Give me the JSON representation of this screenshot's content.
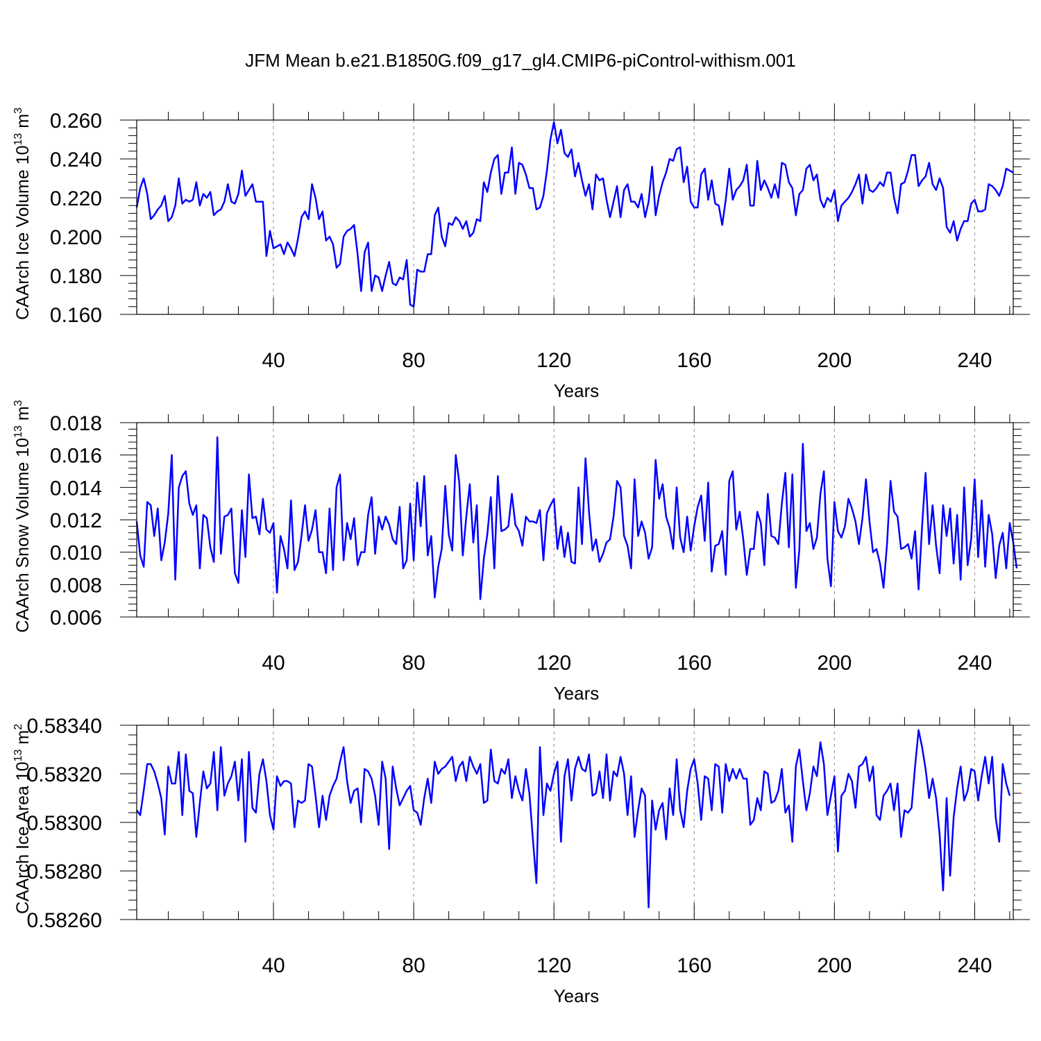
{
  "title": "JFM Mean b.e21.B1850G.f09_g17_gl4.CMIP6-piControl-withism.001",
  "colors": {
    "series": "#0000ff",
    "axis": "#000000",
    "grid": "#888888"
  },
  "chart_data": [
    {
      "type": "line",
      "title": "",
      "ylabel": {
        "text": "CAArch Ice Volume 10",
        "exponent": "13",
        "unit": " m",
        "unit_exponent": "3"
      },
      "xlabel": "Years",
      "xlim": [
        1,
        251
      ],
      "ylim": [
        0.16,
        0.26
      ],
      "xticks": [
        40,
        80,
        120,
        160,
        200,
        240
      ],
      "xtick_labels": [
        "40",
        "80",
        "120",
        "160",
        "200",
        "240"
      ],
      "yticks": [
        0.16,
        0.18,
        0.2,
        0.22,
        0.24,
        0.26
      ],
      "ytick_labels": [
        "0.160",
        "0.180",
        "0.200",
        "0.220",
        "0.240",
        "0.260"
      ],
      "grid": "vertical dashed at x ticks",
      "series": [
        {
          "values": [
            0.215,
            0.225,
            0.23,
            0.222,
            0.209,
            0.211,
            0.214,
            0.216,
            0.221,
            0.208,
            0.21,
            0.216,
            0.23,
            0.217,
            0.219,
            0.218,
            0.219,
            0.228,
            0.216,
            0.222,
            0.22,
            0.223,
            0.211,
            0.213,
            0.214,
            0.218,
            0.227,
            0.218,
            0.217,
            0.222,
            0.234,
            0.221,
            0.224,
            0.227,
            0.218,
            0.218,
            0.218,
            0.19,
            0.203,
            0.194,
            0.195,
            0.196,
            0.191,
            0.197,
            0.194,
            0.19,
            0.199,
            0.21,
            0.213,
            0.209,
            0.227,
            0.22,
            0.209,
            0.213,
            0.198,
            0.2,
            0.196,
            0.184,
            0.186,
            0.2,
            0.203,
            0.204,
            0.206,
            0.191,
            0.172,
            0.192,
            0.197,
            0.172,
            0.18,
            0.179,
            0.172,
            0.18,
            0.187,
            0.176,
            0.175,
            0.179,
            0.178,
            0.188,
            0.165,
            0.164,
            0.183,
            0.182,
            0.182,
            0.191,
            0.191,
            0.211,
            0.215,
            0.2,
            0.195,
            0.207,
            0.206,
            0.21,
            0.208,
            0.204,
            0.208,
            0.2,
            0.202,
            0.209,
            0.208,
            0.228,
            0.223,
            0.233,
            0.24,
            0.242,
            0.222,
            0.233,
            0.233,
            0.246,
            0.222,
            0.238,
            0.237,
            0.232,
            0.225,
            0.225,
            0.214,
            0.215,
            0.221,
            0.234,
            0.25,
            0.259,
            0.248,
            0.255,
            0.243,
            0.241,
            0.245,
            0.231,
            0.238,
            0.229,
            0.221,
            0.227,
            0.214,
            0.232,
            0.229,
            0.23,
            0.219,
            0.21,
            0.218,
            0.226,
            0.21,
            0.224,
            0.227,
            0.218,
            0.218,
            0.215,
            0.222,
            0.21,
            0.218,
            0.236,
            0.211,
            0.221,
            0.228,
            0.233,
            0.24,
            0.239,
            0.245,
            0.246,
            0.228,
            0.236,
            0.218,
            0.215,
            0.215,
            0.232,
            0.235,
            0.219,
            0.229,
            0.217,
            0.216,
            0.206,
            0.219,
            0.235,
            0.219,
            0.224,
            0.226,
            0.229,
            0.237,
            0.216,
            0.216,
            0.239,
            0.224,
            0.229,
            0.225,
            0.22,
            0.227,
            0.22,
            0.238,
            0.237,
            0.228,
            0.225,
            0.211,
            0.222,
            0.224,
            0.235,
            0.237,
            0.229,
            0.232,
            0.219,
            0.215,
            0.22,
            0.218,
            0.224,
            0.208,
            0.216,
            0.218,
            0.22,
            0.223,
            0.227,
            0.232,
            0.217,
            0.232,
            0.224,
            0.223,
            0.225,
            0.228,
            0.226,
            0.233,
            0.233,
            0.22,
            0.212,
            0.227,
            0.228,
            0.234,
            0.242,
            0.242,
            0.226,
            0.229,
            0.231,
            0.238,
            0.227,
            0.224,
            0.23,
            0.225,
            0.205,
            0.202,
            0.208,
            0.198,
            0.204,
            0.208,
            0.208,
            0.217,
            0.219,
            0.213,
            0.213,
            0.214,
            0.227,
            0.226,
            0.224,
            0.221,
            0.226,
            0.235,
            0.234,
            0.233
          ]
        }
      ]
    },
    {
      "type": "line",
      "title": "",
      "ylabel": {
        "text": "CAArch Snow Volume 10",
        "exponent": "13",
        "unit": " m",
        "unit_exponent": "3"
      },
      "xlabel": "Years",
      "xlim": [
        1,
        251
      ],
      "ylim": [
        0.006,
        0.018
      ],
      "xticks": [
        40,
        80,
        120,
        160,
        200,
        240
      ],
      "xtick_labels": [
        "40",
        "80",
        "120",
        "160",
        "200",
        "240"
      ],
      "yticks": [
        0.006,
        0.008,
        0.01,
        0.012,
        0.014,
        0.016,
        0.018
      ],
      "ytick_labels": [
        "0.006",
        "0.008",
        "0.010",
        "0.012",
        "0.014",
        "0.016",
        "0.018"
      ],
      "grid": "vertical dashed at x ticks",
      "series": [
        {
          "values": [
            0.0119,
            0.0098,
            0.0091,
            0.0131,
            0.0129,
            0.011,
            0.0127,
            0.0095,
            0.0106,
            0.0124,
            0.016,
            0.0083,
            0.014,
            0.0147,
            0.015,
            0.013,
            0.0123,
            0.0129,
            0.009,
            0.0123,
            0.0121,
            0.0103,
            0.0094,
            0.0171,
            0.0099,
            0.0122,
            0.0123,
            0.0127,
            0.0087,
            0.0081,
            0.0126,
            0.0097,
            0.0148,
            0.0121,
            0.0122,
            0.0111,
            0.0133,
            0.0114,
            0.0112,
            0.0118,
            0.0075,
            0.011,
            0.0102,
            0.009,
            0.0132,
            0.0089,
            0.0094,
            0.011,
            0.0129,
            0.0107,
            0.0114,
            0.0126,
            0.01,
            0.01,
            0.0087,
            0.0127,
            0.0089,
            0.014,
            0.0148,
            0.0095,
            0.0118,
            0.0108,
            0.0121,
            0.0092,
            0.01,
            0.01,
            0.0123,
            0.0134,
            0.0099,
            0.0122,
            0.0114,
            0.0122,
            0.0117,
            0.0108,
            0.0105,
            0.0128,
            0.009,
            0.0095,
            0.013,
            0.0095,
            0.0143,
            0.0116,
            0.0147,
            0.0098,
            0.011,
            0.0072,
            0.0091,
            0.0102,
            0.0141,
            0.0111,
            0.0101,
            0.016,
            0.0143,
            0.0098,
            0.0122,
            0.0142,
            0.0106,
            0.0129,
            0.0071,
            0.0096,
            0.0111,
            0.0134,
            0.009,
            0.0147,
            0.0113,
            0.0114,
            0.0116,
            0.0136,
            0.0117,
            0.0113,
            0.0104,
            0.0122,
            0.0119,
            0.0119,
            0.0118,
            0.0126,
            0.0095,
            0.0124,
            0.0129,
            0.0133,
            0.0102,
            0.0116,
            0.0097,
            0.0112,
            0.0094,
            0.0093,
            0.014,
            0.0105,
            0.0158,
            0.0125,
            0.0101,
            0.0108,
            0.0094,
            0.0099,
            0.0106,
            0.0108,
            0.0122,
            0.0144,
            0.014,
            0.011,
            0.0104,
            0.009,
            0.0145,
            0.011,
            0.0119,
            0.0112,
            0.0096,
            0.0103,
            0.0157,
            0.0133,
            0.0142,
            0.0122,
            0.0115,
            0.0102,
            0.014,
            0.0109,
            0.01,
            0.0122,
            0.0101,
            0.0116,
            0.0128,
            0.0135,
            0.0107,
            0.0143,
            0.0088,
            0.0104,
            0.0105,
            0.0113,
            0.0086,
            0.0144,
            0.015,
            0.0114,
            0.0125,
            0.0108,
            0.0086,
            0.0102,
            0.0102,
            0.0125,
            0.0118,
            0.0092,
            0.0136,
            0.011,
            0.0109,
            0.0105,
            0.013,
            0.0149,
            0.0103,
            0.0148,
            0.0078,
            0.0102,
            0.0167,
            0.0113,
            0.0118,
            0.0102,
            0.0109,
            0.0136,
            0.015,
            0.0096,
            0.0079,
            0.0131,
            0.0113,
            0.0109,
            0.0116,
            0.0133,
            0.0127,
            0.0119,
            0.0105,
            0.0121,
            0.0145,
            0.0119,
            0.01,
            0.0102,
            0.0093,
            0.0078,
            0.0105,
            0.0144,
            0.0125,
            0.0122,
            0.0102,
            0.0103,
            0.0105,
            0.0096,
            0.0113,
            0.0077,
            0.0116,
            0.0149,
            0.0105,
            0.0129,
            0.0104,
            0.0087,
            0.0129,
            0.011,
            0.0127,
            0.0093,
            0.0123,
            0.0083,
            0.014,
            0.0092,
            0.0108,
            0.0145,
            0.0097,
            0.0132,
            0.0091,
            0.0123,
            0.0111,
            0.0084,
            0.0104,
            0.0112,
            0.009,
            0.0118,
            0.0106,
            0.009
          ]
        }
      ]
    },
    {
      "type": "line",
      "title": "",
      "ylabel": {
        "text": "CAArch Ice Area 10",
        "exponent": "13",
        "unit": " m",
        "unit_exponent": "2"
      },
      "xlabel": "Years",
      "xlim": [
        1,
        251
      ],
      "ylim": [
        0.5826,
        0.5834
      ],
      "xticks": [
        40,
        80,
        120,
        160,
        200,
        240
      ],
      "xtick_labels": [
        "40",
        "80",
        "120",
        "160",
        "200",
        "240"
      ],
      "yticks": [
        0.5826,
        0.5828,
        0.583,
        0.5832,
        0.5834
      ],
      "ytick_labels": [
        "0.58260",
        "0.58280",
        "0.58300",
        "0.58320",
        "0.58340"
      ],
      "grid": "vertical dashed at x ticks",
      "series": [
        {
          "values": [
            0.58305,
            0.58303,
            0.58313,
            0.58324,
            0.58324,
            0.58321,
            0.58316,
            0.5831,
            0.58295,
            0.58323,
            0.58316,
            0.58316,
            0.58329,
            0.58303,
            0.58328,
            0.58313,
            0.58312,
            0.58294,
            0.58308,
            0.58321,
            0.58314,
            0.58316,
            0.58329,
            0.58305,
            0.58331,
            0.58311,
            0.58316,
            0.58319,
            0.58325,
            0.58309,
            0.58326,
            0.58292,
            0.58329,
            0.58306,
            0.58304,
            0.5832,
            0.58326,
            0.58317,
            0.58303,
            0.58297,
            0.58319,
            0.58315,
            0.58317,
            0.58317,
            0.58316,
            0.58298,
            0.58309,
            0.58308,
            0.58309,
            0.58324,
            0.58323,
            0.58311,
            0.58298,
            0.58311,
            0.58301,
            0.58311,
            0.58315,
            0.58318,
            0.58325,
            0.58331,
            0.58317,
            0.58308,
            0.58313,
            0.58314,
            0.583,
            0.58322,
            0.58321,
            0.58318,
            0.58311,
            0.58299,
            0.58325,
            0.58318,
            0.58289,
            0.58323,
            0.58314,
            0.58307,
            0.5831,
            0.58313,
            0.58315,
            0.58305,
            0.58304,
            0.58299,
            0.5831,
            0.58318,
            0.58308,
            0.58325,
            0.5832,
            0.58322,
            0.58323,
            0.58325,
            0.58327,
            0.58317,
            0.58323,
            0.58325,
            0.58317,
            0.58327,
            0.58323,
            0.5832,
            0.58324,
            0.58308,
            0.58309,
            0.5833,
            0.58317,
            0.58316,
            0.58322,
            0.5832,
            0.58326,
            0.5831,
            0.58319,
            0.58313,
            0.58309,
            0.58322,
            0.58312,
            0.58293,
            0.58275,
            0.58331,
            0.58303,
            0.58316,
            0.58313,
            0.5832,
            0.58325,
            0.58292,
            0.58319,
            0.58326,
            0.58309,
            0.58322,
            0.58327,
            0.58322,
            0.58321,
            0.58328,
            0.58311,
            0.58312,
            0.58321,
            0.5831,
            0.58328,
            0.58309,
            0.58321,
            0.58319,
            0.58327,
            0.5832,
            0.58303,
            0.58319,
            0.58294,
            0.58305,
            0.58314,
            0.58311,
            0.58265,
            0.58309,
            0.58297,
            0.58305,
            0.58308,
            0.58293,
            0.58314,
            0.58303,
            0.58326,
            0.58305,
            0.58298,
            0.58313,
            0.58322,
            0.58326,
            0.58316,
            0.58301,
            0.58319,
            0.58318,
            0.58305,
            0.58324,
            0.58323,
            0.58304,
            0.58324,
            0.58317,
            0.58322,
            0.58318,
            0.58322,
            0.58318,
            0.58318,
            0.58299,
            0.58301,
            0.5831,
            0.58305,
            0.58321,
            0.5832,
            0.58308,
            0.58309,
            0.58313,
            0.58322,
            0.58304,
            0.58307,
            0.58292,
            0.58323,
            0.5833,
            0.58317,
            0.58305,
            0.58312,
            0.58323,
            0.58319,
            0.58333,
            0.58324,
            0.58303,
            0.58311,
            0.58319,
            0.58288,
            0.58311,
            0.58313,
            0.5832,
            0.58317,
            0.58306,
            0.58323,
            0.58324,
            0.58327,
            0.58317,
            0.58323,
            0.58303,
            0.58301,
            0.58311,
            0.58313,
            0.58316,
            0.58305,
            0.58316,
            0.58294,
            0.58305,
            0.58304,
            0.58306,
            0.58323,
            0.58338,
            0.58331,
            0.58322,
            0.5831,
            0.58318,
            0.5831,
            0.58295,
            0.58272,
            0.5831,
            0.58278,
            0.58302,
            0.58314,
            0.58323,
            0.58309,
            0.58313,
            0.58322,
            0.58321,
            0.58309,
            0.58319,
            0.58327,
            0.58316,
            0.58327,
            0.58302,
            0.58292,
            0.58324,
            0.58316,
            0.58311
          ]
        }
      ]
    }
  ]
}
